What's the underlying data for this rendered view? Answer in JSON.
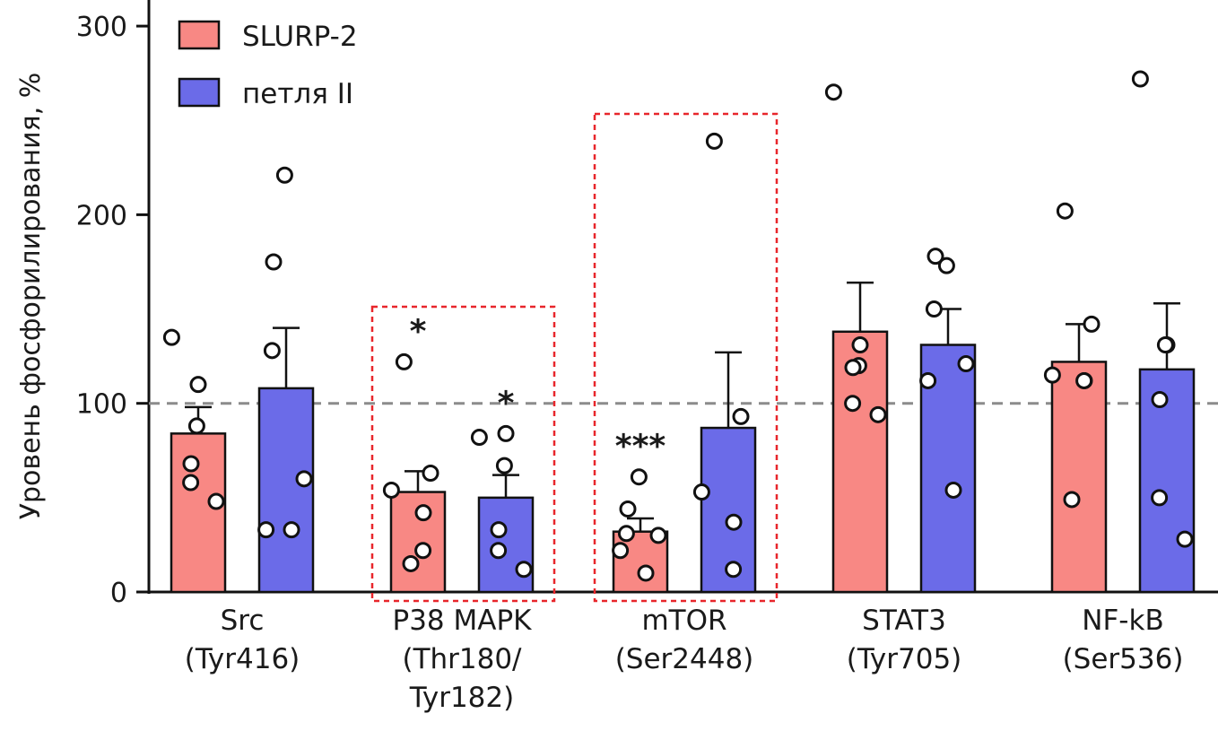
{
  "chart_data": {
    "type": "bar",
    "ylabel": "Уровень фосфорилирования, %",
    "xlabel": "",
    "ylim": [
      0,
      300
    ],
    "yticks": [
      0,
      100,
      200,
      300
    ],
    "reference_line": 100,
    "grid": false,
    "legend_position": "top-left",
    "categories": [
      [
        "Src",
        "(Tyr416)"
      ],
      [
        "P38 MAPK",
        "(Thr180/",
        "Tyr182)"
      ],
      [
        "mTOR",
        "(Ser2448)"
      ],
      [
        "STAT3",
        "(Tyr705)"
      ],
      [
        "NF-kB",
        "(Ser536)"
      ]
    ],
    "highlighted_categories": [
      1,
      2
    ],
    "series": [
      {
        "name": "SLURP-2",
        "color": "#f88884",
        "values": [
          84,
          53,
          32,
          138,
          122
        ],
        "errors": [
          14,
          11,
          7,
          26,
          20
        ],
        "significance": [
          "",
          "*",
          "***",
          "",
          ""
        ],
        "points": [
          [
            135,
            110,
            88,
            68,
            58,
            48
          ],
          [
            122,
            63,
            54,
            42,
            22,
            15
          ],
          [
            61,
            44,
            31,
            30,
            22,
            10
          ],
          [
            265,
            131,
            120,
            119,
            100,
            94
          ],
          [
            202,
            142,
            115,
            112,
            112,
            49
          ]
        ]
      },
      {
        "name": "петля II",
        "color": "#6b6be8",
        "values": [
          108,
          50,
          87,
          131,
          118
        ],
        "errors": [
          32,
          12,
          40,
          19,
          35
        ],
        "significance": [
          "",
          "*",
          "",
          "",
          ""
        ],
        "points": [
          [
            221,
            175,
            128,
            60,
            33,
            33
          ],
          [
            82,
            84,
            67,
            33,
            22,
            12
          ],
          [
            239,
            93,
            53,
            37,
            12
          ],
          [
            173,
            178,
            150,
            121,
            112,
            54
          ],
          [
            272,
            131,
            131,
            102,
            50,
            28
          ]
        ]
      }
    ]
  }
}
